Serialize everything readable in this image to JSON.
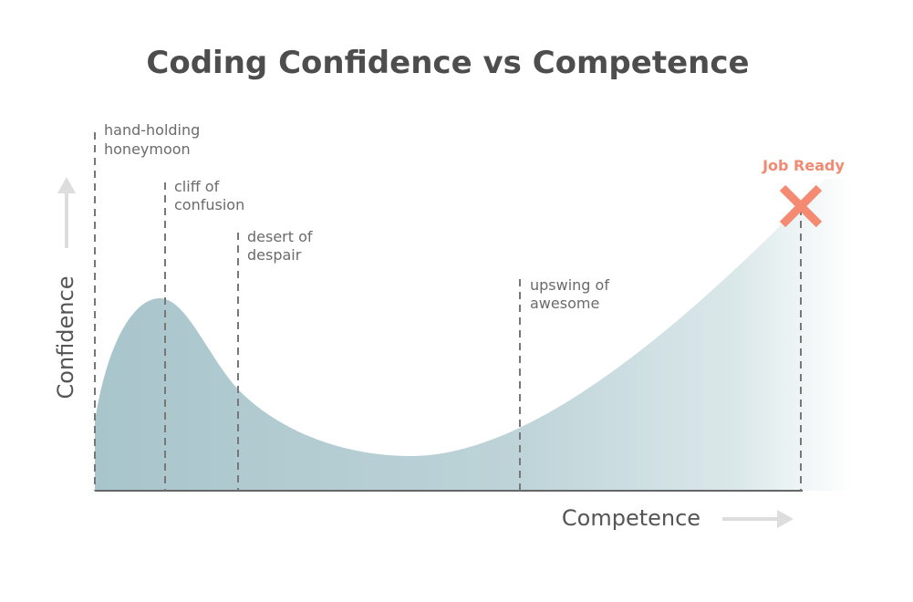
{
  "title": "Coding Confidence vs Competence",
  "y_axis_label": "Confidence",
  "x_axis_label": "Competence",
  "stages": [
    {
      "lines": [
        "hand-holding",
        "honeymoon"
      ]
    },
    {
      "lines": [
        "cliff of",
        "confusion"
      ]
    },
    {
      "lines": [
        "desert of",
        "despair"
      ]
    },
    {
      "lines": [
        "upswing of",
        "awesome"
      ]
    }
  ],
  "goal": "Job Ready"
}
